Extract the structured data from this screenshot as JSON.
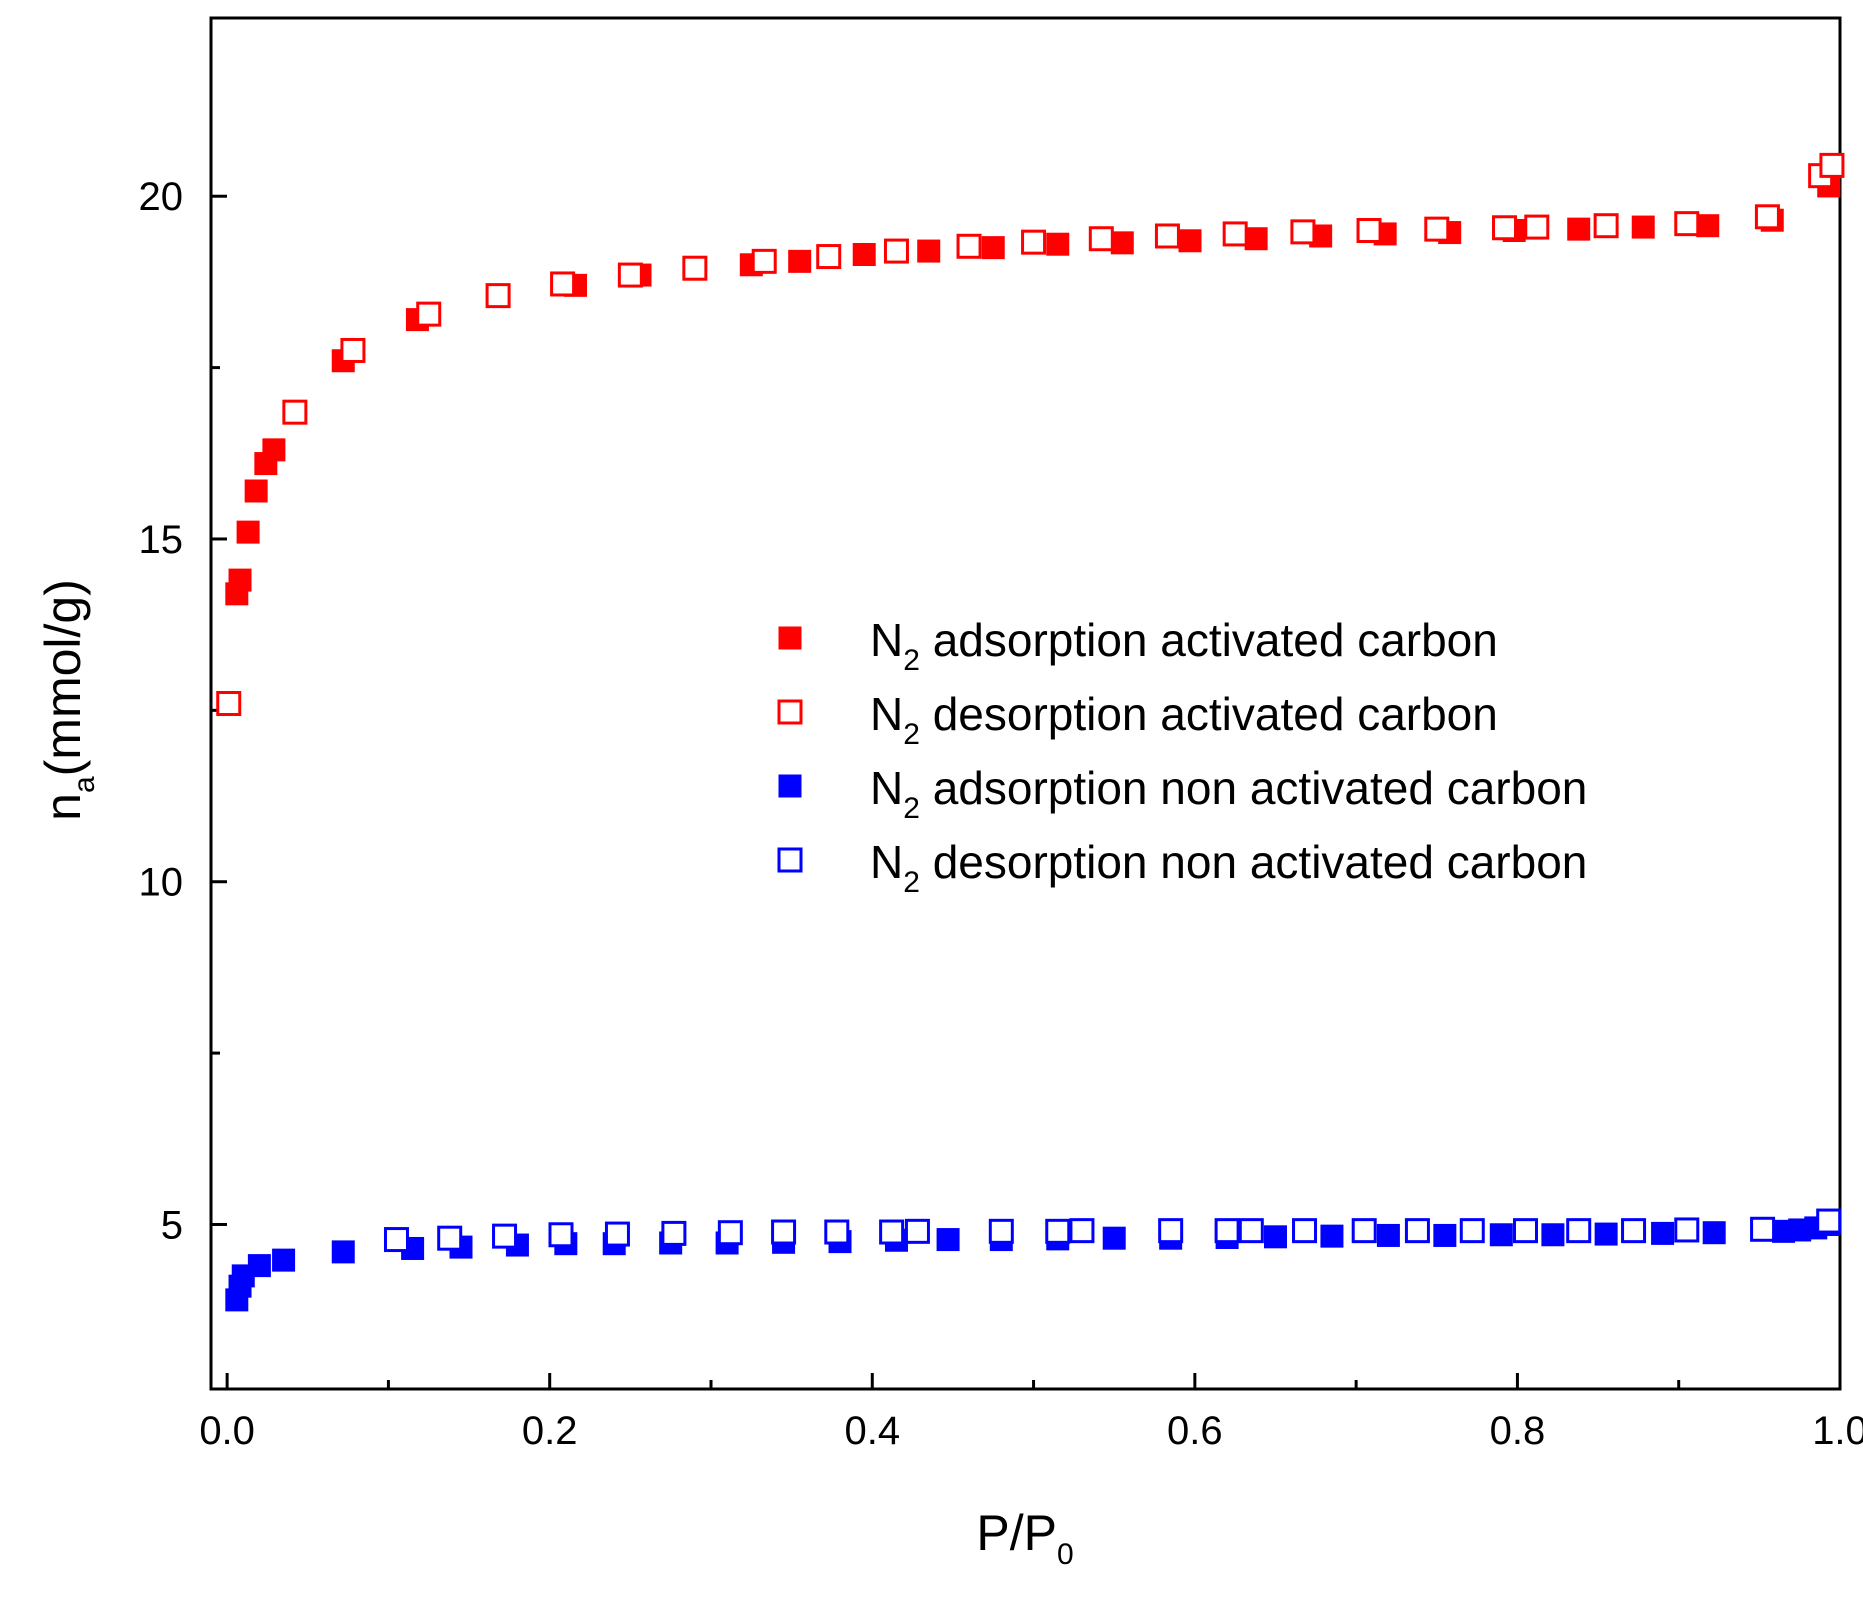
{
  "chart_data": {
    "type": "scatter",
    "title": "",
    "xlabel": {
      "main": "P/P",
      "sub": "0"
    },
    "ylabel": {
      "main": "n",
      "sub": "a",
      "unit": "(mmol/g)"
    },
    "xlim": [
      -0.01,
      1.0
    ],
    "ylim": [
      2.6,
      22.6
    ],
    "x_ticks": [
      {
        "value": 0.0,
        "label": "0.0"
      },
      {
        "value": 0.2,
        "label": "0.2"
      },
      {
        "value": 0.4,
        "label": "0.4"
      },
      {
        "value": 0.6,
        "label": "0.6"
      },
      {
        "value": 0.8,
        "label": "0.8"
      },
      {
        "value": 1.0,
        "label": "1.0"
      }
    ],
    "x_minor_ticks": [
      0.1,
      0.3,
      0.5,
      0.7,
      0.9
    ],
    "y_ticks": [
      {
        "value": 5,
        "label": "5"
      },
      {
        "value": 10,
        "label": "10"
      },
      {
        "value": 15,
        "label": "15"
      },
      {
        "value": 20,
        "label": "20"
      }
    ],
    "y_minor_ticks": [
      7.5,
      12.5,
      17.5
    ],
    "grid": false,
    "legend_position": "center-right",
    "series": [
      {
        "id": "ads-ac",
        "name_main": "N",
        "name_sub": "2",
        "name_rest": " adsorption activated carbon",
        "color": "#ff0000",
        "marker": "filled-square",
        "points": [
          [
            0.006,
            14.2
          ],
          [
            0.008,
            14.4
          ],
          [
            0.013,
            15.1
          ],
          [
            0.018,
            15.7
          ],
          [
            0.024,
            16.1
          ],
          [
            0.029,
            16.3
          ],
          [
            0.072,
            17.6
          ],
          [
            0.118,
            18.2
          ],
          [
            0.216,
            18.7
          ],
          [
            0.256,
            18.85
          ],
          [
            0.325,
            19.0
          ],
          [
            0.355,
            19.05
          ],
          [
            0.395,
            19.15
          ],
          [
            0.435,
            19.2
          ],
          [
            0.475,
            19.25
          ],
          [
            0.515,
            19.3
          ],
          [
            0.555,
            19.32
          ],
          [
            0.597,
            19.35
          ],
          [
            0.638,
            19.38
          ],
          [
            0.678,
            19.42
          ],
          [
            0.718,
            19.45
          ],
          [
            0.758,
            19.47
          ],
          [
            0.798,
            19.5
          ],
          [
            0.838,
            19.52
          ],
          [
            0.878,
            19.55
          ],
          [
            0.918,
            19.57
          ],
          [
            0.958,
            19.65
          ],
          [
            0.993,
            20.15
          ]
        ]
      },
      {
        "id": "des-ac",
        "name_main": "N",
        "name_sub": "2",
        "name_rest": " desorption activated carbon",
        "color": "#ff0000",
        "marker": "open-square",
        "points": [
          [
            0.001,
            12.6
          ],
          [
            0.042,
            16.85
          ],
          [
            0.078,
            17.75
          ],
          [
            0.125,
            18.28
          ],
          [
            0.168,
            18.55
          ],
          [
            0.208,
            18.72
          ],
          [
            0.25,
            18.85
          ],
          [
            0.29,
            18.95
          ],
          [
            0.333,
            19.05
          ],
          [
            0.373,
            19.12
          ],
          [
            0.415,
            19.2
          ],
          [
            0.46,
            19.27
          ],
          [
            0.5,
            19.33
          ],
          [
            0.542,
            19.38
          ],
          [
            0.583,
            19.42
          ],
          [
            0.625,
            19.45
          ],
          [
            0.667,
            19.48
          ],
          [
            0.708,
            19.5
          ],
          [
            0.75,
            19.52
          ],
          [
            0.792,
            19.54
          ],
          [
            0.812,
            19.55
          ],
          [
            0.855,
            19.57
          ],
          [
            0.905,
            19.6
          ],
          [
            0.955,
            19.7
          ],
          [
            0.988,
            20.3
          ],
          [
            0.995,
            20.45
          ]
        ]
      },
      {
        "id": "ads-nac",
        "name_main": "N",
        "name_sub": "2",
        "name_rest": " adsorption non activated carbon",
        "color": "#0000ff",
        "marker": "filled-square",
        "points": [
          [
            0.006,
            3.9
          ],
          [
            0.008,
            4.1
          ],
          [
            0.01,
            4.25
          ],
          [
            0.02,
            4.4
          ],
          [
            0.035,
            4.48
          ],
          [
            0.072,
            4.6
          ],
          [
            0.115,
            4.65
          ],
          [
            0.145,
            4.67
          ],
          [
            0.18,
            4.7
          ],
          [
            0.21,
            4.72
          ],
          [
            0.24,
            4.72
          ],
          [
            0.275,
            4.73
          ],
          [
            0.31,
            4.73
          ],
          [
            0.345,
            4.74
          ],
          [
            0.38,
            4.75
          ],
          [
            0.415,
            4.77
          ],
          [
            0.447,
            4.78
          ],
          [
            0.48,
            4.78
          ],
          [
            0.515,
            4.79
          ],
          [
            0.55,
            4.8
          ],
          [
            0.585,
            4.8
          ],
          [
            0.62,
            4.81
          ],
          [
            0.65,
            4.82
          ],
          [
            0.685,
            4.83
          ],
          [
            0.72,
            4.84
          ],
          [
            0.755,
            4.84
          ],
          [
            0.79,
            4.85
          ],
          [
            0.822,
            4.85
          ],
          [
            0.855,
            4.86
          ],
          [
            0.89,
            4.87
          ],
          [
            0.922,
            4.88
          ],
          [
            0.965,
            4.9
          ],
          [
            0.975,
            4.92
          ],
          [
            0.985,
            4.95
          ],
          [
            0.993,
            5.0
          ]
        ]
      },
      {
        "id": "des-nac",
        "name_main": "N",
        "name_sub": "2",
        "name_rest": " desorption non activated carbon",
        "color": "#0000ff",
        "marker": "open-square",
        "points": [
          [
            0.105,
            4.78
          ],
          [
            0.138,
            4.8
          ],
          [
            0.172,
            4.83
          ],
          [
            0.207,
            4.85
          ],
          [
            0.242,
            4.86
          ],
          [
            0.277,
            4.87
          ],
          [
            0.312,
            4.88
          ],
          [
            0.345,
            4.89
          ],
          [
            0.378,
            4.89
          ],
          [
            0.412,
            4.89
          ],
          [
            0.428,
            4.9
          ],
          [
            0.48,
            4.9
          ],
          [
            0.515,
            4.9
          ],
          [
            0.53,
            4.91
          ],
          [
            0.585,
            4.91
          ],
          [
            0.62,
            4.91
          ],
          [
            0.635,
            4.91
          ],
          [
            0.668,
            4.91
          ],
          [
            0.705,
            4.91
          ],
          [
            0.738,
            4.91
          ],
          [
            0.772,
            4.91
          ],
          [
            0.805,
            4.91
          ],
          [
            0.838,
            4.91
          ],
          [
            0.872,
            4.91
          ],
          [
            0.905,
            4.92
          ],
          [
            0.952,
            4.93
          ],
          [
            0.993,
            5.05
          ]
        ]
      }
    ]
  }
}
